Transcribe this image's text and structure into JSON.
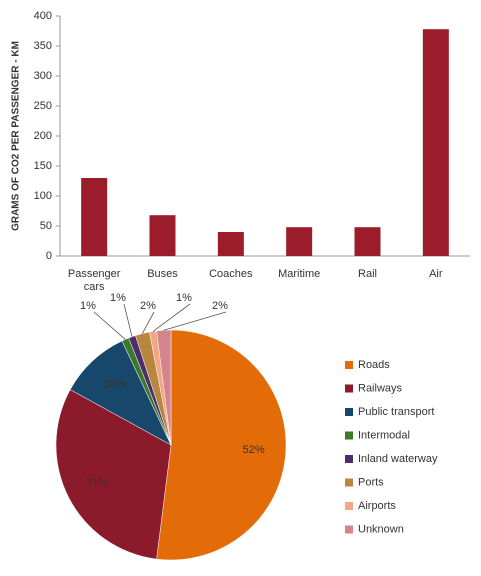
{
  "chart_data": [
    {
      "type": "bar",
      "y_label": "GRAMS OF CO2 PER PASSENGER - KM",
      "categories": [
        "Passenger cars",
        "Buses",
        "Coaches",
        "Maritime",
        "Rail",
        "Air"
      ],
      "values": [
        130,
        68,
        40,
        48,
        48,
        378
      ],
      "color": "#9b1c2a",
      "ylim": [
        0,
        400
      ],
      "yticks": [
        0,
        50,
        100,
        150,
        200,
        250,
        300,
        350,
        400
      ],
      "grid": false
    },
    {
      "type": "pie",
      "categories": [
        "Roads",
        "Railways",
        "Public transport",
        "Intermodal",
        "Inland waterway",
        "Ports",
        "Airports",
        "Unknown"
      ],
      "values": [
        52,
        31,
        10,
        1,
        1,
        2,
        1,
        2
      ],
      "value_labels": [
        "52%",
        "31%",
        "10%",
        "1%",
        "1%",
        "2%",
        "1%",
        "2%"
      ],
      "colors": [
        "#e36c09",
        "#8b1a2b",
        "#17486b",
        "#3a7a2a",
        "#4b2e6b",
        "#b8863e",
        "#f4a582",
        "#d4848b"
      ],
      "legend": "right"
    }
  ]
}
